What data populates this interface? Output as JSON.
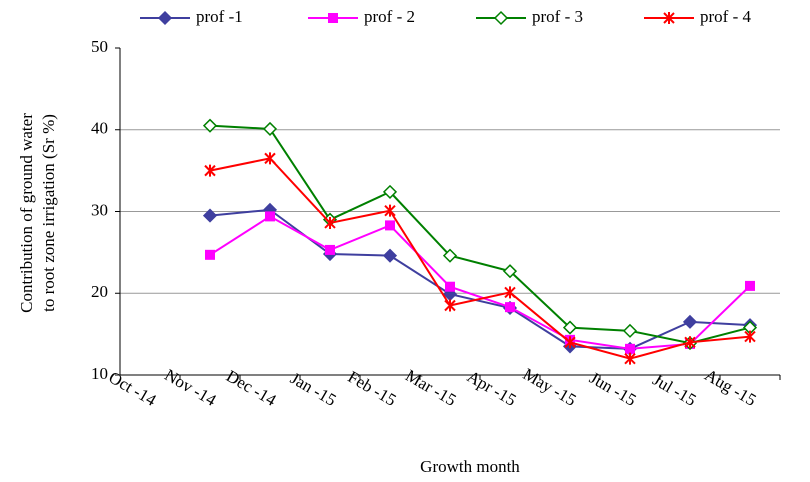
{
  "chart_data": {
    "type": "line",
    "y_label": [
      "Contribution of ground water",
      "to root zone irrigation (Sr %)"
    ],
    "x_label": "Growth month",
    "categories": [
      "Oct -14",
      "Nov -14",
      "Dec -14",
      "Jan -15",
      "Feb -15",
      "Mar -15",
      "Apr -15",
      "May -15",
      "Jun -15",
      "Jul -15",
      "Aug -15"
    ],
    "series": [
      {
        "name": "prof -1",
        "color": "#3f3f9f",
        "marker": "diamond",
        "values": [
          null,
          29.5,
          30.2,
          24.8,
          24.6,
          19.9,
          18.2,
          13.5,
          13.2,
          16.5,
          16.1
        ]
      },
      {
        "name": "prof - 2",
        "color": "#ff00ff",
        "marker": "square",
        "values": [
          null,
          24.7,
          29.4,
          25.3,
          28.3,
          20.8,
          18.3,
          14.3,
          13.2,
          13.8,
          20.9
        ]
      },
      {
        "name": "prof - 3",
        "color": "#008000",
        "marker": "open-diamond",
        "values": [
          null,
          40.5,
          40.1,
          29.0,
          32.4,
          24.6,
          22.7,
          15.8,
          15.4,
          13.9,
          15.8
        ]
      },
      {
        "name": "prof - 4",
        "color": "#ff0000",
        "marker": "cross",
        "values": [
          null,
          35.0,
          36.5,
          28.6,
          30.1,
          18.5,
          20.1,
          14.0,
          12.0,
          14.0,
          14.7
        ]
      }
    ],
    "ylim": [
      10,
      50
    ],
    "yticks": [
      10,
      20,
      30,
      40,
      50
    ],
    "grid": true,
    "legend": "top"
  }
}
